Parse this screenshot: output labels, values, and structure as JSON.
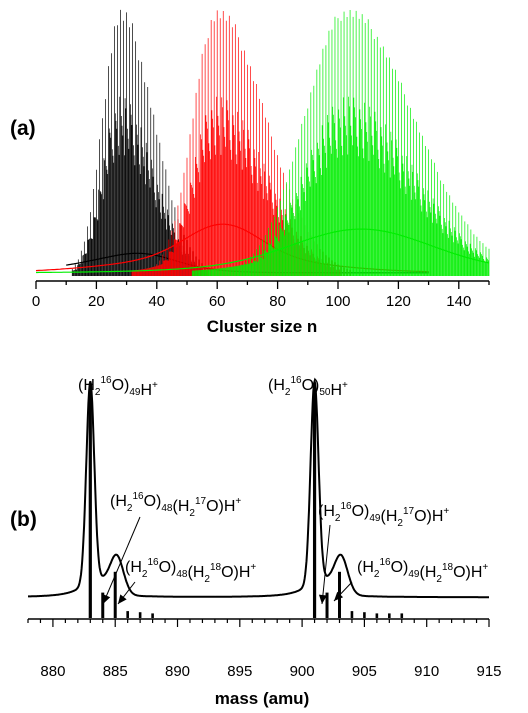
{
  "chart_data": [
    {
      "panel": "(a)",
      "type": "line",
      "xlabel": "Cluster size n",
      "ylabel": "",
      "xlim": [
        0,
        150
      ],
      "xticks": [
        "0",
        "20",
        "40",
        "60",
        "80",
        "100",
        "120",
        "140"
      ],
      "grid": false,
      "series": [
        {
          "color": "#000000",
          "peak_n": 28,
          "range": [
            10,
            130
          ]
        },
        {
          "color": "#ff0000",
          "peak_n": 60,
          "range": [
            0,
            130
          ]
        },
        {
          "color": "#00ee00",
          "peak_n": 103,
          "range": [
            0,
            150
          ]
        }
      ]
    },
    {
      "panel": "(b)",
      "type": "line",
      "xlabel": "mass (amu)",
      "ylabel": "",
      "xlim": [
        878,
        915
      ],
      "xticks": [
        "880",
        "885",
        "890",
        "895",
        "900",
        "905",
        "910",
        "915"
      ],
      "grid": false,
      "peaks": [
        {
          "mass": 883,
          "height": 1.0
        },
        {
          "mass": 884,
          "height": 0.11
        },
        {
          "mass": 885,
          "height": 0.2
        },
        {
          "mass": 886,
          "height": 0.03
        },
        {
          "mass": 887,
          "height": 0.025
        },
        {
          "mass": 888,
          "height": 0.02
        },
        {
          "mass": 901,
          "height": 1.0
        },
        {
          "mass": 902,
          "height": 0.11
        },
        {
          "mass": 903,
          "height": 0.2
        },
        {
          "mass": 904,
          "height": 0.03
        },
        {
          "mass": 905,
          "height": 0.025
        },
        {
          "mass": 906,
          "height": 0.02
        },
        {
          "mass": 907,
          "height": 0.02
        },
        {
          "mass": 908,
          "height": 0.02
        }
      ],
      "annotations": [
        {
          "text": "(H2 16O)49H+",
          "mass": 883
        },
        {
          "text": "(H2 16O)48(H2 17O)H+",
          "mass": 884
        },
        {
          "text": "(H2 16O)48(H2 18O)H+",
          "mass": 885
        },
        {
          "text": "(H2 16O)50H+",
          "mass": 901
        },
        {
          "text": "(H2 16O)49(H2 17O)H+",
          "mass": 902
        },
        {
          "text": "(H2 16O)49(H2 18O)H+",
          "mass": 903
        }
      ]
    }
  ]
}
